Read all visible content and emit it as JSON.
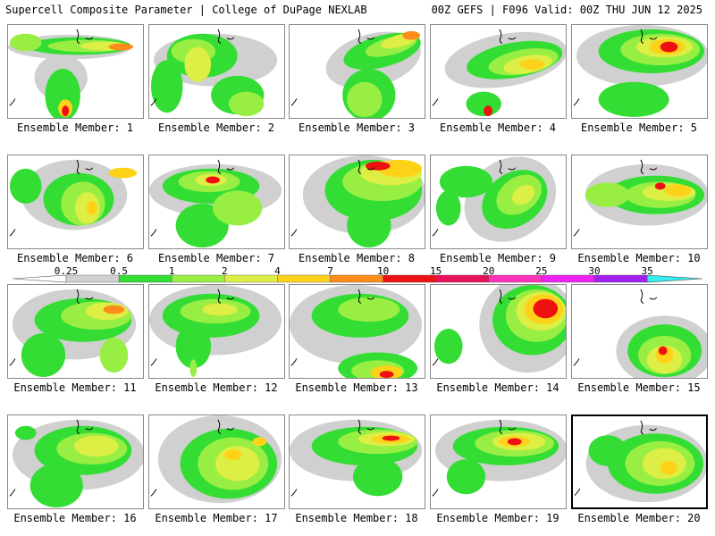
{
  "header": {
    "left": "Supercell Composite Parameter | College of DuPage NEXLAB",
    "right": "00Z GEFS | F096 Valid: 00Z THU JUN 12 2025"
  },
  "legend": {
    "thresholds": [
      "0.25",
      "0.5",
      "1",
      "2",
      "4",
      "7",
      "10",
      "15",
      "20",
      "25",
      "30",
      "35"
    ],
    "colors": [
      "#d0d0d0",
      "#33dd33",
      "#99ee44",
      "#ddee44",
      "#ffd21a",
      "#ff8c1a",
      "#ee1111",
      "#e8115a",
      "#ff33bb",
      "#ee22ee",
      "#a020f0",
      "#c080f0",
      "#33eeee"
    ]
  },
  "panels": [
    {
      "label": "Ensemble Member: 1",
      "member": 1,
      "selected": false
    },
    {
      "label": "Ensemble Member: 2",
      "member": 2,
      "selected": false
    },
    {
      "label": "Ensemble Member: 3",
      "member": 3,
      "selected": false
    },
    {
      "label": "Ensemble Member: 4",
      "member": 4,
      "selected": false
    },
    {
      "label": "Ensemble Member: 5",
      "member": 5,
      "selected": false
    },
    {
      "label": "Ensemble Member: 6",
      "member": 6,
      "selected": false
    },
    {
      "label": "Ensemble Member: 7",
      "member": 7,
      "selected": false
    },
    {
      "label": "Ensemble Member: 8",
      "member": 8,
      "selected": false
    },
    {
      "label": "Ensemble Member: 9",
      "member": 9,
      "selected": false
    },
    {
      "label": "Ensemble Member: 10",
      "member": 10,
      "selected": false
    },
    {
      "label": "Ensemble Member: 11",
      "member": 11,
      "selected": false
    },
    {
      "label": "Ensemble Member: 12",
      "member": 12,
      "selected": false
    },
    {
      "label": "Ensemble Member: 13",
      "member": 13,
      "selected": false
    },
    {
      "label": "Ensemble Member: 14",
      "member": 14,
      "selected": false
    },
    {
      "label": "Ensemble Member: 15",
      "member": 15,
      "selected": false
    },
    {
      "label": "Ensemble Member: 16",
      "member": 16,
      "selected": false
    },
    {
      "label": "Ensemble Member: 17",
      "member": 17,
      "selected": false
    },
    {
      "label": "Ensemble Member: 18",
      "member": 18,
      "selected": false
    },
    {
      "label": "Ensemble Member: 19",
      "member": 19,
      "selected": false
    },
    {
      "label": "Ensemble Member: 20",
      "member": 20,
      "selected": true
    }
  ]
}
